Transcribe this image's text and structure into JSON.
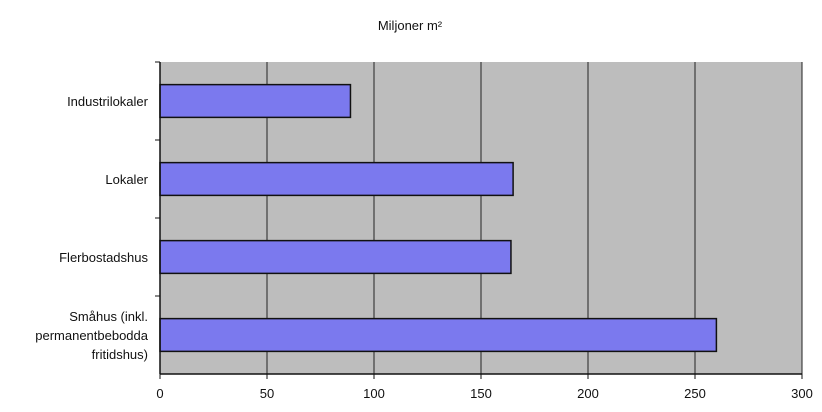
{
  "chart_data": {
    "type": "bar",
    "orientation": "horizontal",
    "title": "Miljoner m²",
    "categories": [
      "Industrilokaler",
      "Lokaler",
      "Flerbostadshus",
      "Småhus (inkl. permanentbebodda fritidshus)"
    ],
    "category_lines": [
      [
        "Industrilokaler"
      ],
      [
        "Lokaler"
      ],
      [
        "Flerbostadshus"
      ],
      [
        "Småhus (inkl.",
        "permanentbebodda",
        "fritidshus)"
      ]
    ],
    "values": [
      89,
      165,
      164,
      260
    ],
    "xlim": [
      0,
      300
    ],
    "xticks": [
      "0",
      "50",
      "100",
      "150",
      "200",
      "250",
      "300"
    ],
    "grid": true,
    "colors": {
      "bar": "#7b79ee",
      "bar_edge": "#111111",
      "plot_bg": "#bdbdbd",
      "gridline": "#222222"
    }
  }
}
